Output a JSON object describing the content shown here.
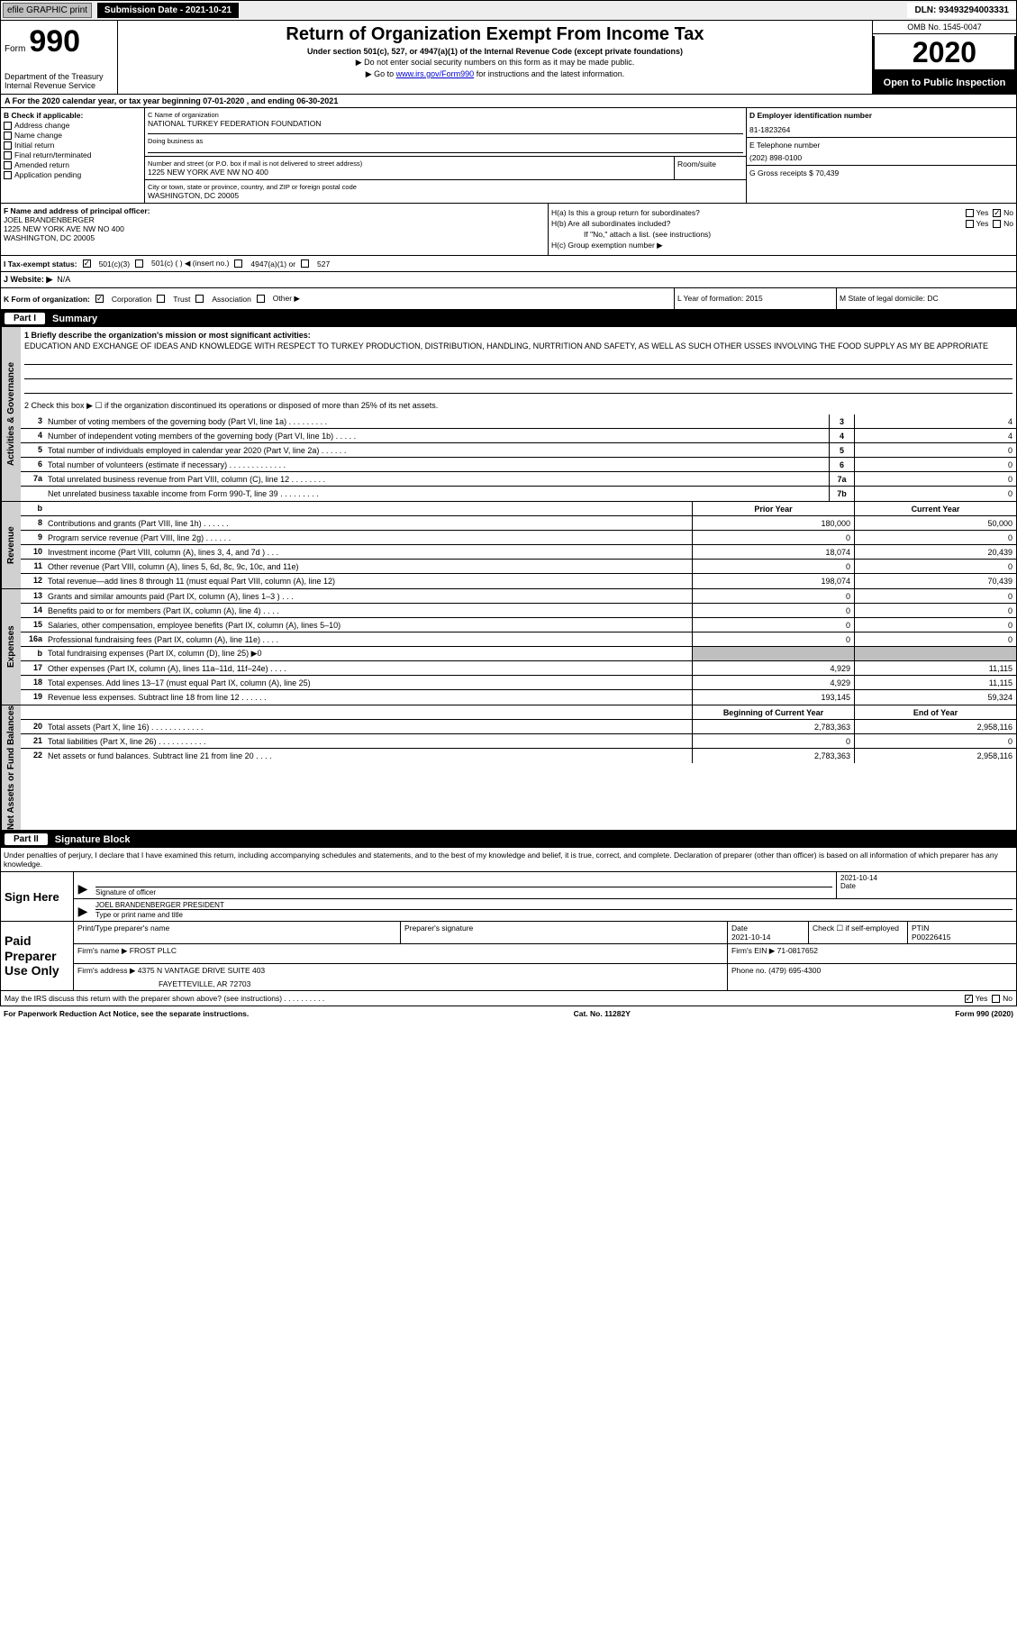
{
  "topbar": {
    "efile_label": "efile GRAPHIC print",
    "submission_label": "Submission Date - 2021-10-21",
    "dln_label": "DLN: 93493294003331"
  },
  "header": {
    "form_prefix": "Form",
    "form_number": "990",
    "dept": "Department of the Treasury",
    "irs": "Internal Revenue Service",
    "title": "Return of Organization Exempt From Income Tax",
    "sub1": "Under section 501(c), 527, or 4947(a)(1) of the Internal Revenue Code (except private foundations)",
    "sub2": "▶ Do not enter social security numbers on this form as it may be made public.",
    "sub3_pre": "▶ Go to ",
    "sub3_link": "www.irs.gov/Form990",
    "sub3_post": " for instructions and the latest information.",
    "omb": "OMB No. 1545-0047",
    "year": "2020",
    "inspection": "Open to Public Inspection"
  },
  "period": {
    "text": "A For the 2020 calendar year, or tax year beginning 07-01-2020    , and ending 06-30-2021"
  },
  "box_b": {
    "label": "B Check if applicable:",
    "items": [
      "Address change",
      "Name change",
      "Initial return",
      "Final return/terminated",
      "Amended return",
      "Application pending"
    ]
  },
  "box_c": {
    "name_label": "C Name of organization",
    "name": "NATIONAL TURKEY FEDERATION FOUNDATION",
    "dba_label": "Doing business as",
    "addr_label": "Number and street (or P.O. box if mail is not delivered to street address)",
    "addr": "1225 NEW YORK AVE NW NO 400",
    "room_label": "Room/suite",
    "city_label": "City or town, state or province, country, and ZIP or foreign postal code",
    "city": "WASHINGTON, DC  20005"
  },
  "box_d": {
    "label": "D Employer identification number",
    "value": "81-1823264"
  },
  "box_e": {
    "label": "E Telephone number",
    "value": "(202) 898-0100"
  },
  "box_g": {
    "label": "G Gross receipts $ 70,439"
  },
  "box_f": {
    "label": "F  Name and address of principal officer:",
    "name": "JOEL BRANDENBERGER",
    "addr1": "1225 NEW YORK AVE NW NO 400",
    "addr2": "WASHINGTON, DC  20005"
  },
  "box_h": {
    "ha": "H(a)  Is this a group return for subordinates?",
    "hb": "H(b)  Are all subordinates included?",
    "hb_note": "If \"No,\" attach a list. (see instructions)",
    "hc": "H(c)  Group exemption number ▶",
    "yes": "Yes",
    "no": "No"
  },
  "box_i": {
    "label": "I   Tax-exempt status:",
    "opts": [
      "501(c)(3)",
      "501(c) (  ) ◀ (insert no.)",
      "4947(a)(1) or",
      "527"
    ]
  },
  "box_j": {
    "label": "J   Website: ▶",
    "value": "N/A"
  },
  "box_k": {
    "label": "K Form of organization:",
    "opts": [
      "Corporation",
      "Trust",
      "Association",
      "Other ▶"
    ]
  },
  "box_l": {
    "label": "L Year of formation: 2015"
  },
  "box_m": {
    "label": "M State of legal domicile: DC"
  },
  "part1": {
    "label": "Part I",
    "title": "Summary"
  },
  "mission": {
    "prompt": "1  Briefly describe the organization's mission or most significant activities:",
    "text": "EDUCATION AND EXCHANGE OF IDEAS AND KNOWLEDGE WITH RESPECT TO TURKEY PRODUCTION, DISTRIBUTION, HANDLING, NURTRITION AND SAFETY, AS WELL AS SUCH OTHER USSES INVOLVING THE FOOD SUPPLY AS MY BE APPRORIATE",
    "line2": "2   Check this box ▶ ☐  if the organization discontinued its operations or disposed of more than 25% of its net assets."
  },
  "gov_lines": [
    {
      "n": "3",
      "desc": "Number of voting members of the governing body (Part VI, line 1a)   .   .   .   .   .   .   .   .   .",
      "box": "3",
      "val": "4"
    },
    {
      "n": "4",
      "desc": "Number of independent voting members of the governing body (Part VI, line 1b)   .   .   .   .   .",
      "box": "4",
      "val": "4"
    },
    {
      "n": "5",
      "desc": "Total number of individuals employed in calendar year 2020 (Part V, line 2a)   .   .   .   .   .   .",
      "box": "5",
      "val": "0"
    },
    {
      "n": "6",
      "desc": "Total number of volunteers (estimate if necessary)    .   .   .   .   .   .   .   .   .   .   .   .   .",
      "box": "6",
      "val": "0"
    },
    {
      "n": "7a",
      "desc": "Total unrelated business revenue from Part VIII, column (C), line 12   .   .   .   .   .   .   .   .",
      "box": "7a",
      "val": "0"
    },
    {
      "n": "",
      "desc": "Net unrelated business taxable income from Form 990-T, line 39   .   .   .   .   .   .   .   .   .",
      "box": "7b",
      "val": "0"
    }
  ],
  "rev_header": {
    "b": "b",
    "prior": "Prior Year",
    "current": "Current Year"
  },
  "rev_lines": [
    {
      "n": "8",
      "desc": "Contributions and grants (Part VIII, line 1h)   .   .   .   .   .   .",
      "py": "180,000",
      "cy": "50,000"
    },
    {
      "n": "9",
      "desc": "Program service revenue (Part VIII, line 2g)   .   .   .   .   .   .",
      "py": "0",
      "cy": "0"
    },
    {
      "n": "10",
      "desc": "Investment income (Part VIII, column (A), lines 3, 4, and 7d )   .   .   .",
      "py": "18,074",
      "cy": "20,439"
    },
    {
      "n": "11",
      "desc": "Other revenue (Part VIII, column (A), lines 5, 6d, 8c, 9c, 10c, and 11e)",
      "py": "0",
      "cy": "0"
    },
    {
      "n": "12",
      "desc": "Total revenue—add lines 8 through 11 (must equal Part VIII, column (A), line 12)",
      "py": "198,074",
      "cy": "70,439"
    }
  ],
  "exp_lines": [
    {
      "n": "13",
      "desc": "Grants and similar amounts paid (Part IX, column (A), lines 1–3 )   .   .   .",
      "py": "0",
      "cy": "0"
    },
    {
      "n": "14",
      "desc": "Benefits paid to or for members (Part IX, column (A), line 4)   .   .   .   .",
      "py": "0",
      "cy": "0"
    },
    {
      "n": "15",
      "desc": "Salaries, other compensation, employee benefits (Part IX, column (A), lines 5–10)",
      "py": "0",
      "cy": "0"
    },
    {
      "n": "16a",
      "desc": "Professional fundraising fees (Part IX, column (A), line 11e)   .   .   .   .",
      "py": "0",
      "cy": "0"
    },
    {
      "n": "b",
      "desc": "Total fundraising expenses (Part IX, column (D), line 25) ▶0",
      "py": "",
      "cy": "",
      "shade": true
    },
    {
      "n": "17",
      "desc": "Other expenses (Part IX, column (A), lines 11a–11d, 11f–24e)   .   .   .   .",
      "py": "4,929",
      "cy": "11,115"
    },
    {
      "n": "18",
      "desc": "Total expenses. Add lines 13–17 (must equal Part IX, column (A), line 25)",
      "py": "4,929",
      "cy": "11,115"
    },
    {
      "n": "19",
      "desc": "Revenue less expenses. Subtract line 18 from line 12   .   .   .   .   .   .",
      "py": "193,145",
      "cy": "59,324"
    }
  ],
  "net_header": {
    "prior": "Beginning of Current Year",
    "current": "End of Year"
  },
  "net_lines": [
    {
      "n": "20",
      "desc": "Total assets (Part X, line 16)   .   .   .   .   .   .   .   .   .   .   .   .",
      "py": "2,783,363",
      "cy": "2,958,116"
    },
    {
      "n": "21",
      "desc": "Total liabilities (Part X, line 26)   .   .   .   .   .   .   .   .   .   .   .",
      "py": "0",
      "cy": "0"
    },
    {
      "n": "22",
      "desc": "Net assets or fund balances. Subtract line 21 from line 20   .   .   .   .",
      "py": "2,783,363",
      "cy": "2,958,116"
    }
  ],
  "part2": {
    "label": "Part II",
    "title": "Signature Block"
  },
  "sig_intro": "Under penalties of perjury, I declare that I have examined this return, including accompanying schedules and statements, and to the best of my knowledge and belief, it is true, correct, and complete. Declaration of preparer (other than officer) is based on all information of which preparer has any knowledge.",
  "sign": {
    "here": "Sign Here",
    "sig_label": "Signature of officer",
    "date": "2021-10-14",
    "date_label": "Date",
    "name": "JOEL BRANDENBERGER  PRESIDENT",
    "name_label": "Type or print name and title"
  },
  "prep": {
    "label": "Paid Preparer Use Only",
    "r1": {
      "c1": "Print/Type preparer's name",
      "c2": "Preparer's signature",
      "c3": "Date\n2021-10-14",
      "c4": "Check ☐  if self-employed",
      "c5": "PTIN\nP00226415"
    },
    "r2": {
      "label": "Firm's name    ▶",
      "val": "FROST PLLC",
      "ein": "Firm's EIN ▶ 71-0817652"
    },
    "r3": {
      "label": "Firm's address ▶",
      "val": "4375 N VANTAGE DRIVE SUITE 403",
      "city": "FAYETTEVILLE, AR  72703",
      "phone": "Phone no. (479) 695-4300"
    }
  },
  "discuss": {
    "text": "May the IRS discuss this return with the preparer shown above? (see instructions)   .   .   .   .   .   .   .   .   .   .",
    "yes": "Yes",
    "no": "No"
  },
  "footer": {
    "left": "For Paperwork Reduction Act Notice, see the separate instructions.",
    "mid": "Cat. No. 11282Y",
    "right": "Form 990 (2020)"
  },
  "vtabs": {
    "gov": "Activities & Governance",
    "rev": "Revenue",
    "exp": "Expenses",
    "net": "Net Assets or Fund Balances"
  }
}
